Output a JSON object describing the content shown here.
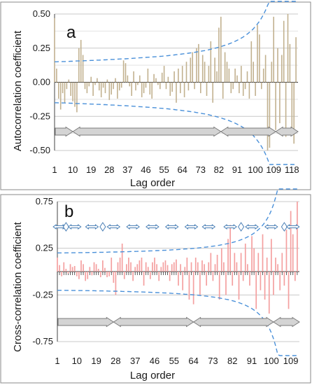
{
  "chart_data": [
    {
      "type": "bar",
      "panel_label": "a",
      "title": "",
      "xlabel": "Lag order",
      "ylabel": "Autocorrelation coefficient",
      "ylim": [
        -0.5,
        0.5
      ],
      "yticks": [
        "0.50",
        "0.25",
        "0.00",
        "-0.25",
        "-0.50"
      ],
      "xlim": [
        1,
        121
      ],
      "xticks": [
        "1",
        "10",
        "19",
        "28",
        "37",
        "46",
        "55",
        "64",
        "73",
        "82",
        "91",
        "100",
        "109",
        "118"
      ],
      "grid": true,
      "bar_color": "#c2b18f",
      "bound_color": "#4a90d9",
      "x": [
        1,
        2,
        3,
        4,
        5,
        6,
        7,
        8,
        9,
        10,
        11,
        12,
        13,
        14,
        15,
        16,
        17,
        18,
        19,
        20,
        21,
        22,
        23,
        24,
        25,
        26,
        27,
        28,
        29,
        30,
        31,
        32,
        33,
        34,
        35,
        36,
        37,
        38,
        39,
        40,
        41,
        42,
        43,
        44,
        45,
        46,
        47,
        48,
        49,
        50,
        51,
        52,
        53,
        54,
        55,
        56,
        57,
        58,
        59,
        60,
        61,
        62,
        63,
        64,
        65,
        66,
        67,
        68,
        69,
        70,
        71,
        72,
        73,
        74,
        75,
        76,
        77,
        78,
        79,
        80,
        81,
        82,
        83,
        84,
        85,
        86,
        87,
        88,
        89,
        90,
        91,
        92,
        93,
        94,
        95,
        96,
        97,
        98,
        99,
        100,
        101,
        102,
        103,
        104,
        105,
        106,
        107,
        108,
        109,
        110,
        111,
        112,
        113,
        114,
        115,
        116,
        117,
        118,
        119,
        120
      ],
      "values": [
        0.47,
        0.1,
        -0.12,
        -0.2,
        -0.08,
        -0.15,
        -0.05,
        0.02,
        -0.1,
        -0.14,
        -0.18,
        -0.22,
        0.25,
        0.31,
        0.2,
        -0.05,
        -0.08,
        -0.03,
        0.04,
        -0.1,
        -0.02,
        0.03,
        -0.06,
        -0.11,
        -0.04,
        -0.08,
        0.02,
        -0.13,
        -0.09,
        -0.05,
        0.03,
        -0.12,
        -0.06,
        -0.04,
        0.16,
        0.14,
        0.05,
        -0.03,
        -0.1,
        0.08,
        -0.06,
        -0.02,
        0.05,
        -0.11,
        -0.08,
        -0.04,
        0.1,
        -0.09,
        -0.12,
        0.06,
        0.03,
        -0.02,
        -0.05,
        0.07,
        0.12,
        -0.05,
        0.04,
        -0.1,
        -0.07,
        0.08,
        -0.15,
        0.1,
        -0.08,
        0.12,
        -0.11,
        0.15,
        -0.06,
        0.18,
        0.22,
        -0.05,
        0.25,
        0.28,
        -0.08,
        0.2,
        0.15,
        -0.1,
        0.12,
        0.3,
        -0.15,
        0.18,
        0.08,
        0.4,
        0.48,
        -0.12,
        0.22,
        0.15,
        0.1,
        -0.08,
        -0.05,
        0.1,
        0.05,
        -0.08,
        0.12,
        -0.1,
        -0.05,
        0.08,
        -0.12,
        0.3,
        0.15,
        -0.1,
        0.42,
        0.35,
        -0.05,
        0.1,
        0.2,
        -0.5,
        -0.48,
        0.15,
        0.48,
        -0.35,
        0.25,
        -0.3,
        0.2,
        0.45,
        -0.4,
        0.5,
        0.28,
        -0.38,
        -0.45,
        0.33
      ],
      "upper_bound": [
        0.15,
        0.15,
        0.151,
        0.151,
        0.152,
        0.152,
        0.153,
        0.153,
        0.154,
        0.154,
        0.155,
        0.156,
        0.156,
        0.157,
        0.157,
        0.158,
        0.158,
        0.159,
        0.16,
        0.16,
        0.161,
        0.162,
        0.162,
        0.163,
        0.164,
        0.164,
        0.165,
        0.166,
        0.167,
        0.167,
        0.168,
        0.169,
        0.17,
        0.171,
        0.171,
        0.172,
        0.173,
        0.174,
        0.175,
        0.176,
        0.177,
        0.178,
        0.179,
        0.18,
        0.181,
        0.182,
        0.183,
        0.184,
        0.185,
        0.186,
        0.187,
        0.189,
        0.19,
        0.191,
        0.193,
        0.194,
        0.195,
        0.197,
        0.198,
        0.2,
        0.202,
        0.203,
        0.205,
        0.207,
        0.209,
        0.211,
        0.213,
        0.215,
        0.217,
        0.219,
        0.222,
        0.224,
        0.227,
        0.23,
        0.232,
        0.235,
        0.238,
        0.242,
        0.245,
        0.249,
        0.253,
        0.257,
        0.261,
        0.266,
        0.271,
        0.276,
        0.281,
        0.287,
        0.293,
        0.3,
        0.307,
        0.315,
        0.323,
        0.332,
        0.342,
        0.353,
        0.365,
        0.378,
        0.392,
        0.409,
        0.427,
        0.447,
        0.47,
        0.497,
        0.527,
        0.563,
        0.605,
        0.655,
        0.715,
        0.79,
        0.885,
        1.01,
        1.18,
        1.425,
        1.8,
        2.45,
        3.8,
        9.0,
        9.0,
        9.0
      ],
      "periods": [
        {
          "from": 1,
          "to": 10,
          "direction": "right"
        },
        {
          "from": 10,
          "to": 83,
          "direction": "both"
        },
        {
          "from": 83,
          "to": 110,
          "direction": "both"
        },
        {
          "from": 110,
          "to": 121,
          "direction": "both"
        }
      ]
    },
    {
      "type": "bar",
      "panel_label": "b",
      "title": "",
      "xlabel": "Lag order",
      "ylabel": "Cross-correlation coefficient",
      "ylim": [
        -0.75,
        0.75
      ],
      "yticks": [
        "0.75",
        "0.25",
        "-0.25",
        "-0.75"
      ],
      "ytick_values": [
        0.75,
        0.25,
        -0.25,
        -0.75
      ],
      "xlim": [
        1,
        113
      ],
      "xticks": [
        "1",
        "10",
        "19",
        "28",
        "37",
        "46",
        "55",
        "64",
        "73",
        "82",
        "91",
        "100",
        "109"
      ],
      "grid": true,
      "bar_color": "#f4a0a0",
      "bound_color": "#4a90d9",
      "x": [
        1,
        2,
        3,
        4,
        5,
        6,
        7,
        8,
        9,
        10,
        11,
        12,
        13,
        14,
        15,
        16,
        17,
        18,
        19,
        20,
        21,
        22,
        23,
        24,
        25,
        26,
        27,
        28,
        29,
        30,
        31,
        32,
        33,
        34,
        35,
        36,
        37,
        38,
        39,
        40,
        41,
        42,
        43,
        44,
        45,
        46,
        47,
        48,
        49,
        50,
        51,
        52,
        53,
        54,
        55,
        56,
        57,
        58,
        59,
        60,
        61,
        62,
        63,
        64,
        65,
        66,
        67,
        68,
        69,
        70,
        71,
        72,
        73,
        74,
        75,
        76,
        77,
        78,
        79,
        80,
        81,
        82,
        83,
        84,
        85,
        86,
        87,
        88,
        89,
        90,
        91,
        92,
        93,
        94,
        95,
        96,
        97,
        98,
        99,
        100,
        101,
        102,
        103,
        104,
        105,
        106,
        107,
        108,
        109,
        110,
        111,
        112
      ],
      "values": [
        0.15,
        0.07,
        -0.05,
        0.1,
        0.03,
        -0.02,
        0.08,
        0.05,
        0.06,
        -0.05,
        -0.08,
        0.12,
        0.08,
        -0.1,
        -0.08,
        0.05,
        -0.04,
        0.1,
        0.08,
        0.03,
        -0.06,
        0.12,
        0.04,
        -0.06,
        -0.05,
        0.15,
        -0.12,
        -0.25,
        0.1,
        0.15,
        0.3,
        -0.08,
        0.08,
        0.15,
        0.1,
        -0.1,
        0.05,
        0.08,
        0.12,
        0.15,
        -0.15,
        0.1,
        0.05,
        -0.08,
        0.1,
        0.15,
        0.08,
        -0.1,
        0.05,
        0.1,
        0.12,
        0.07,
        -0.1,
        0.08,
        0.1,
        0.13,
        -0.15,
        0.08,
        -0.2,
        0.05,
        0.15,
        -0.3,
        0.1,
        -0.35,
        0.15,
        0.1,
        -0.25,
        0.12,
        0.08,
        -0.15,
        0.1,
        0.2,
        -0.1,
        0.08,
        0.18,
        -0.3,
        0.25,
        0.1,
        -0.25,
        0.35,
        0.5,
        -0.15,
        0.2,
        0.1,
        -0.3,
        0.2,
        -0.1,
        0.3,
        0.08,
        -0.15,
        0.38,
        0.25,
        -0.4,
        0.2,
        -0.2,
        0.4,
        -0.3,
        0.15,
        -0.45,
        0.35,
        -0.25,
        0.15,
        0.08,
        -0.2,
        0.2,
        -0.15,
        0.45,
        -0.4,
        0.65,
        0.4,
        -0.1,
        0.75
      ],
      "upper_bound": [
        0.2,
        0.2,
        0.2,
        0.2,
        0.201,
        0.201,
        0.201,
        0.202,
        0.202,
        0.202,
        0.203,
        0.203,
        0.203,
        0.204,
        0.204,
        0.205,
        0.205,
        0.205,
        0.206,
        0.206,
        0.207,
        0.207,
        0.208,
        0.208,
        0.209,
        0.209,
        0.21,
        0.21,
        0.211,
        0.211,
        0.212,
        0.213,
        0.213,
        0.214,
        0.215,
        0.215,
        0.216,
        0.217,
        0.218,
        0.218,
        0.219,
        0.22,
        0.221,
        0.222,
        0.223,
        0.224,
        0.225,
        0.226,
        0.227,
        0.228,
        0.229,
        0.23,
        0.231,
        0.233,
        0.234,
        0.235,
        0.237,
        0.238,
        0.24,
        0.242,
        0.243,
        0.245,
        0.247,
        0.249,
        0.251,
        0.253,
        0.256,
        0.258,
        0.261,
        0.263,
        0.266,
        0.269,
        0.272,
        0.275,
        0.279,
        0.283,
        0.287,
        0.291,
        0.296,
        0.301,
        0.306,
        0.312,
        0.318,
        0.325,
        0.333,
        0.341,
        0.35,
        0.36,
        0.371,
        0.383,
        0.396,
        0.412,
        0.429,
        0.449,
        0.471,
        0.497,
        0.527,
        0.563,
        0.605,
        0.655,
        0.717,
        0.795,
        0.89,
        1.02,
        1.2,
        1.45,
        1.85,
        2.5,
        3.9,
        9.0,
        9.0,
        9.0
      ],
      "periods": [
        {
          "from": 1,
          "to": 27,
          "direction": "right"
        },
        {
          "from": 27,
          "to": 64,
          "direction": "both"
        },
        {
          "from": 64,
          "to": 101,
          "direction": "both"
        },
        {
          "from": 101,
          "to": 113,
          "direction": "both"
        }
      ],
      "small_markers": [
        {
          "x": 2,
          "shape": "arrow"
        },
        {
          "x": 5,
          "shape": "diamond"
        },
        {
          "x": 9,
          "shape": "arrow"
        },
        {
          "x": 17,
          "shape": "arrow"
        },
        {
          "x": 22,
          "shape": "diamond"
        },
        {
          "x": 27,
          "shape": "arrow"
        },
        {
          "x": 36,
          "shape": "arrow"
        },
        {
          "x": 45,
          "shape": "arrow"
        },
        {
          "x": 54,
          "shape": "arrow"
        },
        {
          "x": 63,
          "shape": "arrow"
        },
        {
          "x": 71,
          "shape": "arrow"
        },
        {
          "x": 81,
          "shape": "arrow"
        },
        {
          "x": 86,
          "shape": "diamond"
        },
        {
          "x": 91,
          "shape": "arrow"
        },
        {
          "x": 100,
          "shape": "arrow"
        },
        {
          "x": 106,
          "shape": "diamond"
        },
        {
          "x": 110,
          "shape": "arrow"
        }
      ]
    }
  ]
}
